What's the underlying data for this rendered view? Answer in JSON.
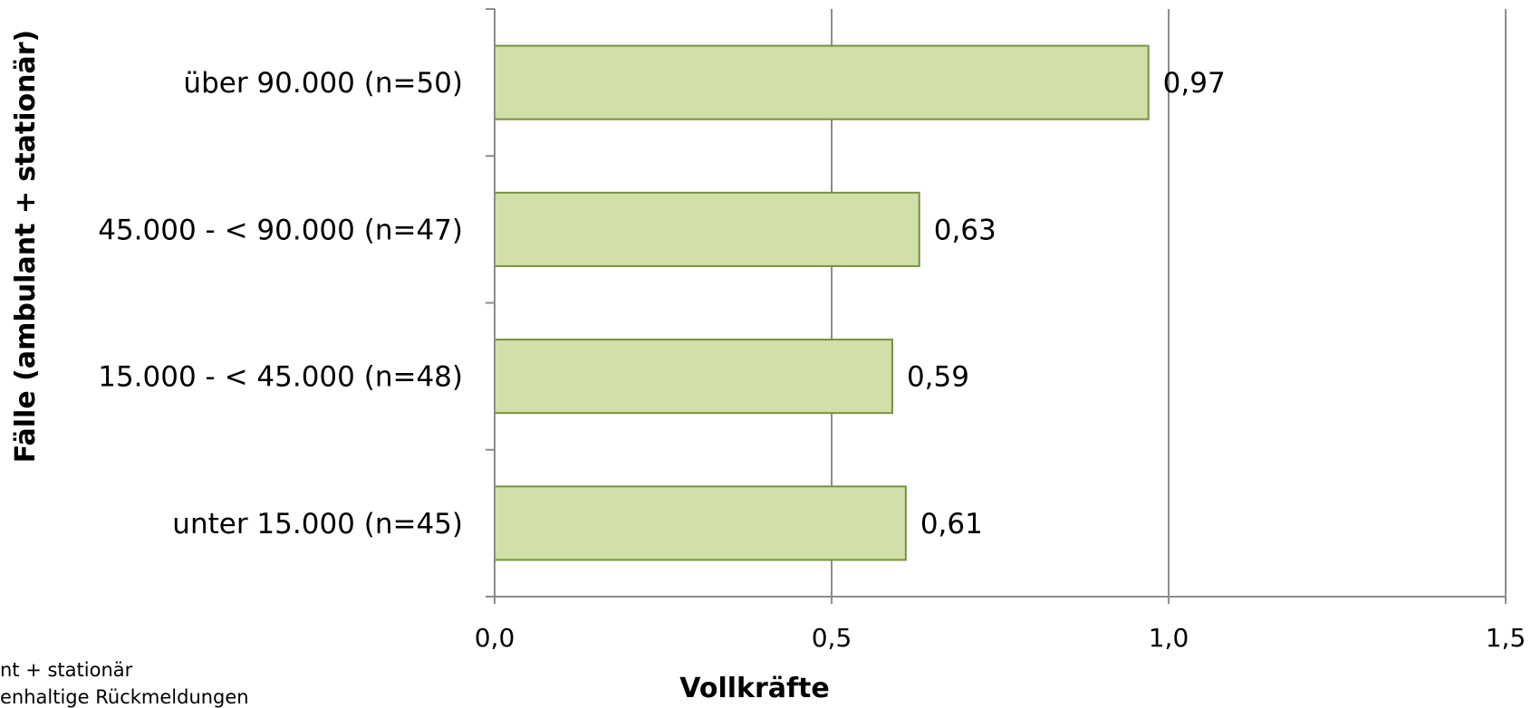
{
  "chart_data": {
    "type": "bar",
    "orientation": "horizontal",
    "categories": [
      "über 90.000 (n=50)",
      "45.000 - < 90.000 (n=47)",
      "15.000 - < 45.000 (n=48)",
      "unter 15.000 (n=45)"
    ],
    "values": [
      0.97,
      0.63,
      0.59,
      0.61
    ],
    "value_labels": [
      "0,97",
      "0,63",
      "0,59",
      "0,61"
    ],
    "xlabel": "Vollkräfte",
    "ylabel": "Fälle (ambulant + stationär)",
    "xlim": [
      0,
      1.5
    ],
    "x_ticks": [
      0,
      0.5,
      1.0,
      1.5
    ],
    "x_tick_labels": [
      "0,0",
      "0,5",
      "1,0",
      "1,5"
    ],
    "grid": true,
    "bar_color": "#d1dfa9",
    "bar_edge_color": "#76923c"
  },
  "footnotes": [
    "nt + stationär",
    "enhaltige Rückmeldungen"
  ]
}
